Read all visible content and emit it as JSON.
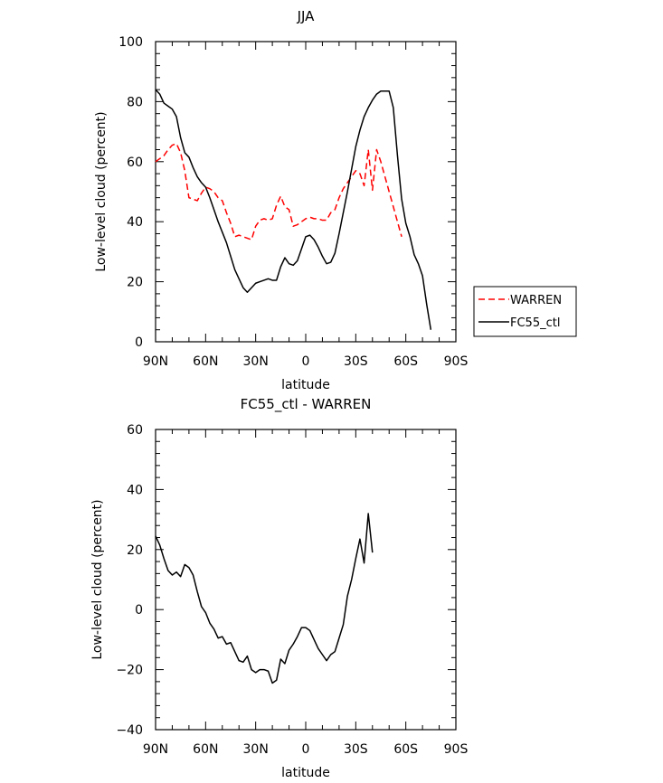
{
  "chart_data": [
    {
      "type": "line",
      "title": "JJA",
      "xlabel": "latitude",
      "ylabel": "Low-level cloud (percent)",
      "xlim": [
        90,
        -90
      ],
      "ylim": [
        0,
        100
      ],
      "x_ticks": [
        90,
        60,
        30,
        0,
        -30,
        -60,
        -90
      ],
      "x_tick_labels": [
        "90N",
        "60N",
        "30N",
        "0",
        "30S",
        "60S",
        "90S"
      ],
      "y_ticks": [
        0,
        20,
        40,
        60,
        80,
        100
      ],
      "y_tick_labels": [
        "0",
        "20",
        "40",
        "60",
        "80",
        "100"
      ],
      "legend_position": "right",
      "series": [
        {
          "name": "WARREN",
          "color": "#ff0000",
          "dash": "dashed",
          "x": [
            90,
            87.5,
            85,
            82.5,
            80,
            77.5,
            75,
            72.5,
            70,
            67.5,
            65,
            62.5,
            60,
            57.5,
            55,
            52.5,
            50,
            47.5,
            45,
            42.5,
            40,
            37.5,
            35,
            32.5,
            30,
            27.5,
            25,
            22.5,
            20,
            17.5,
            15,
            12.5,
            10,
            7.5,
            5,
            2.5,
            0,
            -2.5,
            -5,
            -7.5,
            -10,
            -12.5,
            -15,
            -17.5,
            -20,
            -22.5,
            -25,
            -27.5,
            -30,
            -32.5,
            -35,
            -37.5,
            -40,
            -42.5,
            -45,
            -47.5,
            -50,
            -52.5,
            -55,
            -57.5
          ],
          "values": [
            60,
            61,
            62,
            64,
            65.5,
            66,
            63,
            57,
            48,
            47.5,
            47,
            49.5,
            51.5,
            51,
            50,
            48,
            47,
            43,
            39.5,
            35,
            35.5,
            35,
            34.5,
            34,
            38.5,
            40.5,
            41,
            40.5,
            41,
            45.5,
            48.5,
            45,
            44,
            38.5,
            39,
            40,
            41,
            41.5,
            41,
            41,
            40.5,
            40.5,
            43,
            44,
            48,
            51,
            53,
            55,
            57,
            56,
            52,
            64,
            50.5,
            64,
            60,
            55,
            50,
            45,
            40,
            35
          ]
        },
        {
          "name": "FC55_ctl",
          "color": "#000000",
          "dash": "solid",
          "x": [
            90,
            87.5,
            85,
            82.5,
            80,
            77.5,
            75,
            72.5,
            70,
            67.5,
            65,
            62.5,
            60,
            57.5,
            55,
            52.5,
            50,
            47.5,
            45,
            42.5,
            40,
            37.5,
            35,
            32.5,
            30,
            27.5,
            25,
            22.5,
            20,
            17.5,
            15,
            12.5,
            10,
            7.5,
            5,
            2.5,
            0,
            -2.5,
            -5,
            -7.5,
            -10,
            -12.5,
            -15,
            -17.5,
            -20,
            -22.5,
            -25,
            -27.5,
            -30,
            -32.5,
            -35,
            -37.5,
            -40,
            -42.5,
            -45,
            -47.5,
            -50,
            -52.5,
            -55,
            -57.5,
            -60,
            -62.5,
            -65,
            -67.5,
            -70,
            -72.5,
            -75,
            -77.5,
            -80,
            -82.5,
            -85,
            -87.5,
            -90
          ],
          "values": [
            84,
            82.5,
            79.5,
            78.5,
            77.5,
            75,
            68,
            63,
            61.5,
            58,
            55,
            53,
            51.5,
            48,
            44,
            40,
            36.5,
            33,
            28.5,
            24,
            21,
            18,
            16.5,
            18,
            19.5,
            20,
            20.5,
            21,
            20.5,
            20.5,
            25,
            28,
            26,
            25.5,
            27,
            31,
            35,
            35.5,
            34,
            31.5,
            28.5,
            26,
            26.5,
            29.5,
            36,
            43,
            50,
            57.5,
            65,
            70.5,
            75,
            78,
            80.5,
            82.5,
            83.5,
            83.5,
            83.5,
            78,
            62,
            47.5,
            39.5,
            35,
            29,
            26,
            22,
            12.5,
            4,
            null,
            null,
            null,
            null,
            null,
            null
          ]
        }
      ]
    },
    {
      "type": "line",
      "title": "FC55_ctl - WARREN",
      "xlabel": "latitude",
      "ylabel": "Low-level cloud (percent)",
      "xlim": [
        90,
        -90
      ],
      "ylim": [
        -40,
        60
      ],
      "x_ticks": [
        90,
        60,
        30,
        0,
        -30,
        -60,
        -90
      ],
      "x_tick_labels": [
        "90N",
        "60N",
        "30N",
        "0",
        "30S",
        "60S",
        "90S"
      ],
      "y_ticks": [
        -40,
        -20,
        0,
        20,
        40,
        60
      ],
      "y_tick_labels": [
        "−40",
        "−20",
        "0",
        "20",
        "40",
        "60"
      ],
      "series": [
        {
          "color": "#000000",
          "dash": "solid",
          "x": [
            90,
            87.5,
            85,
            82.5,
            80,
            77.5,
            75,
            72.5,
            70,
            67.5,
            65,
            62.5,
            60,
            57.5,
            55,
            52.5,
            50,
            47.5,
            45,
            42.5,
            40,
            37.5,
            35,
            32.5,
            30,
            27.5,
            25,
            22.5,
            20,
            17.5,
            15,
            12.5,
            10,
            7.5,
            5,
            2.5,
            0,
            -2.5,
            -5,
            -7.5,
            -10,
            -12.5,
            -15,
            -17.5,
            -20,
            -22.5,
            -25,
            -27.5,
            -30,
            -32.5,
            -35,
            -37.5,
            -40,
            -42.5,
            -45,
            -47.5,
            -50,
            -52.5,
            -55,
            -57.5
          ],
          "values": [
            24.5,
            21.5,
            17,
            13,
            11.5,
            12.5,
            11,
            15,
            14,
            11.5,
            6,
            1,
            -1,
            -4.5,
            -6.5,
            -9.5,
            -9,
            -11.5,
            -11,
            -14,
            -17,
            -17.5,
            -15.5,
            -20,
            -21,
            -20,
            -20,
            -20.5,
            -24.5,
            -23.5,
            -16.5,
            -18,
            -13.5,
            -11.5,
            -9,
            -6,
            -6,
            -7,
            -10,
            -13,
            -15,
            -17,
            -15,
            -14,
            -9.5,
            -5,
            4.5,
            10,
            17,
            23.5,
            15.5,
            32,
            19,
            null,
            null,
            null,
            null,
            null,
            null,
            null
          ]
        }
      ]
    }
  ]
}
